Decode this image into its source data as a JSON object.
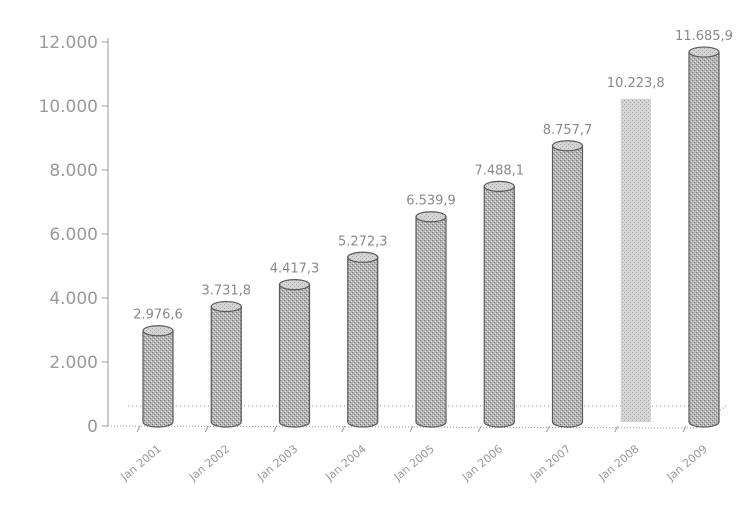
{
  "chart_data": {
    "type": "bar",
    "categories": [
      "Jan 2001",
      "Jan 2002",
      "Jan 2003",
      "Jan 2004",
      "Jan 2005",
      "Jan 2006",
      "Jan 2007",
      "Jan 2008",
      "Jan 2009"
    ],
    "values": [
      2976.6,
      3731.8,
      4417.3,
      5272.3,
      6539.9,
      7488.1,
      8757.7,
      10223.8,
      11685.9
    ],
    "value_labels": [
      "2.976,6",
      "3.731,8",
      "4.417,3",
      "5.272,3",
      "6.539,9",
      "7.488,1",
      "8.757,7",
      "10.223,8",
      "11.685,9"
    ],
    "yticks": [
      0,
      2000,
      4000,
      6000,
      8000,
      10000,
      12000
    ],
    "ytick_labels": [
      "0",
      "2.000",
      "4.000",
      "6.000",
      "8.000",
      "10.000",
      "12.000"
    ],
    "ylim": [
      0,
      12000
    ],
    "title": "",
    "xlabel": "",
    "ylabel": "",
    "grid": false,
    "style": "3d-cylinder",
    "colors": {
      "bar": "#a8a8a8",
      "bar_highlight": "#d6d6d6",
      "bar_outline": "#5a5a5a",
      "axis": "#9a9a9a",
      "text": "#9a9a9a"
    }
  }
}
